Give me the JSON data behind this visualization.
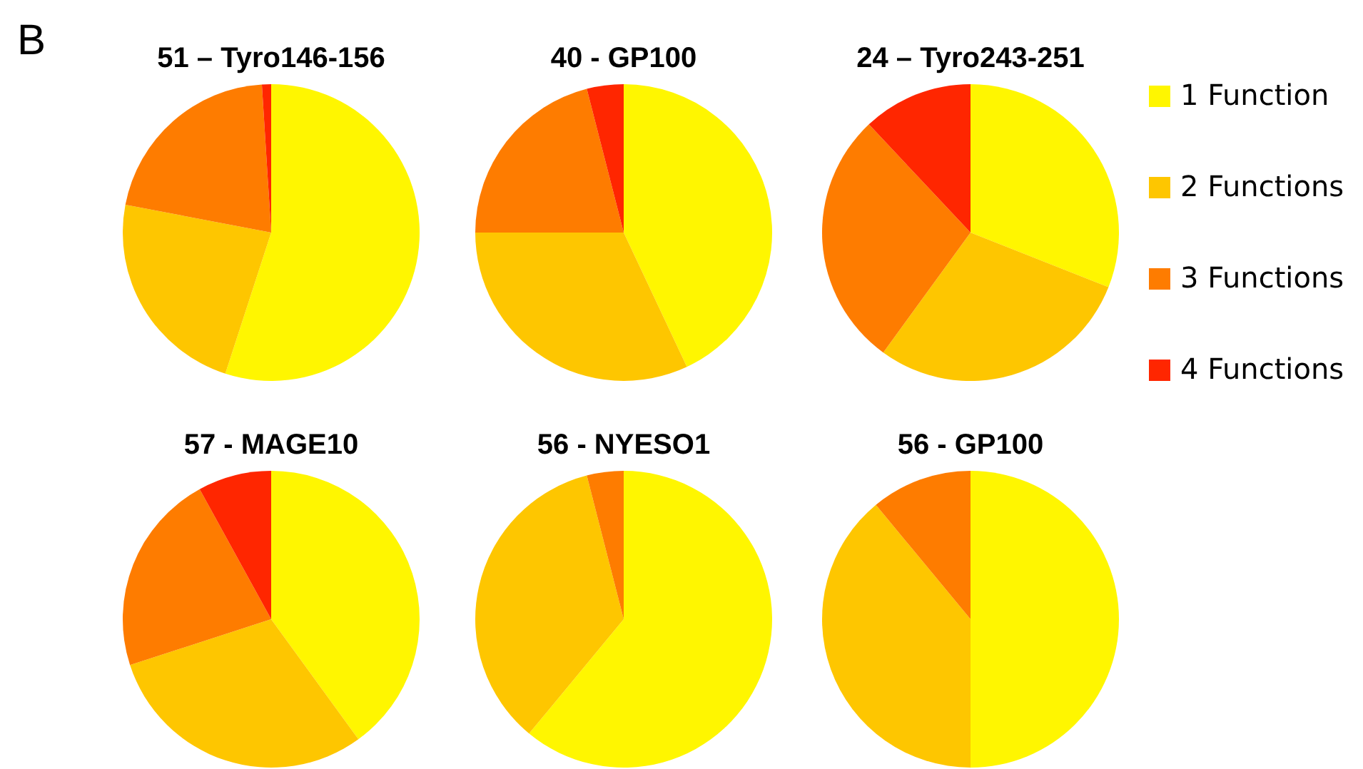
{
  "chart_data": [
    {
      "type": "pie",
      "title": "51 – Tyro146-156",
      "categories": [
        null,
        null,
        null,
        null
      ],
      "values": [
        55,
        23,
        21,
        1
      ],
      "colors": [
        "#fff600",
        "#fec600",
        "#fe7c00",
        "#ff2600"
      ],
      "legend": false,
      "annotations": [
        "B"
      ]
    },
    {
      "type": "pie",
      "title": "40 - GP100",
      "categories": [
        null,
        null,
        null,
        null
      ],
      "values": [
        43,
        32,
        21,
        4
      ],
      "colors": [
        "#fff600",
        "#fec600",
        "#fe7c00",
        "#ff2600"
      ],
      "legend": false
    },
    {
      "type": "pie",
      "title": "24 – Tyro243-251",
      "categories": [
        "1 Function",
        "2 Functions",
        "3 Functions",
        "4 Functions"
      ],
      "values": [
        31,
        29,
        28,
        12
      ],
      "colors": [
        "#fff600",
        "#fec600",
        "#fe7c00",
        "#ff2600"
      ],
      "legend": "right"
    },
    {
      "type": "pie",
      "title": "57 - MAGE10",
      "categories": [
        null,
        null,
        null,
        null
      ],
      "values": [
        40,
        30,
        22,
        8
      ],
      "colors": [
        "#fff600",
        "#fec600",
        "#fe7c00",
        "#ff2600"
      ],
      "legend": false
    },
    {
      "type": "pie",
      "title": "56 - NYESO1",
      "categories": [
        null,
        null,
        null
      ],
      "values": [
        61,
        35,
        4
      ],
      "colors": [
        "#fff600",
        "#fec600",
        "#fe7c00"
      ],
      "legend": false
    },
    {
      "type": "pie",
      "title": "56 - GP100",
      "categories": [
        null,
        null,
        null
      ],
      "values": [
        50,
        39,
        11
      ],
      "colors": [
        "#fff600",
        "#fec600",
        "#fe7c00"
      ],
      "legend": false
    }
  ]
}
